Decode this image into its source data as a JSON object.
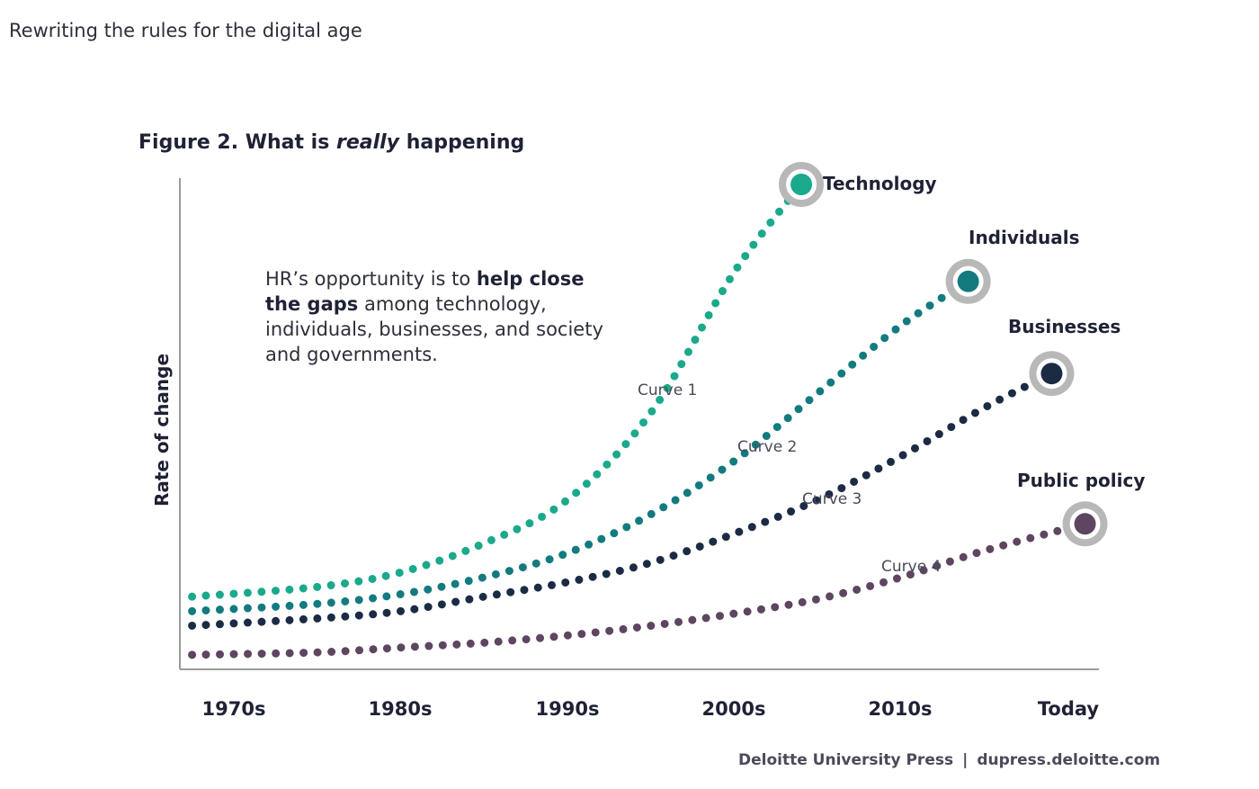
{
  "header": {
    "page_title": "Rewriting the rules for the digital age"
  },
  "figure": {
    "title_prefix": "Figure 2. What is ",
    "title_emphasis": "really",
    "title_suffix": " happening"
  },
  "callout": {
    "text_1": "HR’s opportunity is to ",
    "bold_1": "help close",
    "bold_2": "the gaps",
    "text_2": " among technology,",
    "text_3": "individuals, businesses, and society",
    "text_4": "and governments."
  },
  "source": {
    "publisher": "Deloitte University Press",
    "separator": "|",
    "url": "dupress.deloitte.com"
  },
  "colors": {
    "technology": "#1aa98b",
    "individuals": "#137b7f",
    "businesses": "#1c2b44",
    "public_policy": "#5e4560",
    "marker_ring": "#b8b8b8",
    "axis": "#9a9a9a"
  },
  "chart_data": {
    "type": "line",
    "title": "Figure 2. What is really happening",
    "ylabel": "Rate of change",
    "xlabel": "",
    "categories": [
      "1970s",
      "1980s",
      "1990s",
      "2000s",
      "2010s",
      "Today"
    ],
    "y_scale": "qualitative (no tick values)",
    "xlim": [
      1967.5,
      2025
    ],
    "ylim": [
      0,
      100
    ],
    "grid": false,
    "legend": "none (end-of-line labels)",
    "series": [
      {
        "name": "Technology",
        "curve_label": "Curve 1",
        "color_key": "technology",
        "points": [
          [
            1967.5,
            15
          ],
          [
            1975,
            17
          ],
          [
            1980,
            20
          ],
          [
            1985,
            26
          ],
          [
            1990,
            35
          ],
          [
            1995,
            53
          ],
          [
            2000,
            82
          ],
          [
            2004,
            100
          ]
        ]
      },
      {
        "name": "Individuals",
        "curve_label": "Curve 2",
        "color_key": "individuals",
        "points": [
          [
            1967.5,
            12
          ],
          [
            1975,
            13.5
          ],
          [
            1980,
            15.5
          ],
          [
            1985,
            19
          ],
          [
            1990,
            24
          ],
          [
            1995,
            32
          ],
          [
            2000,
            43
          ],
          [
            2005,
            57
          ],
          [
            2010,
            71
          ],
          [
            2014,
            80
          ]
        ]
      },
      {
        "name": "Businesses",
        "curve_label": "Curve 3",
        "color_key": "businesses",
        "points": [
          [
            1967.5,
            9
          ],
          [
            1975,
            10.5
          ],
          [
            1980,
            12
          ],
          [
            1985,
            15
          ],
          [
            1990,
            18
          ],
          [
            1995,
            22
          ],
          [
            2000,
            28
          ],
          [
            2005,
            35
          ],
          [
            2010,
            44
          ],
          [
            2015,
            54
          ],
          [
            2019,
            61
          ]
        ]
      },
      {
        "name": "Public policy",
        "curve_label": "Curve 4",
        "color_key": "public_policy",
        "points": [
          [
            1967.5,
            3
          ],
          [
            1975,
            3.5
          ],
          [
            1980,
            4.5
          ],
          [
            1985,
            5.5
          ],
          [
            1990,
            7
          ],
          [
            1995,
            9
          ],
          [
            2000,
            11.5
          ],
          [
            2005,
            14.5
          ],
          [
            2010,
            19
          ],
          [
            2015,
            24.5
          ],
          [
            2021,
            30
          ]
        ]
      }
    ]
  }
}
